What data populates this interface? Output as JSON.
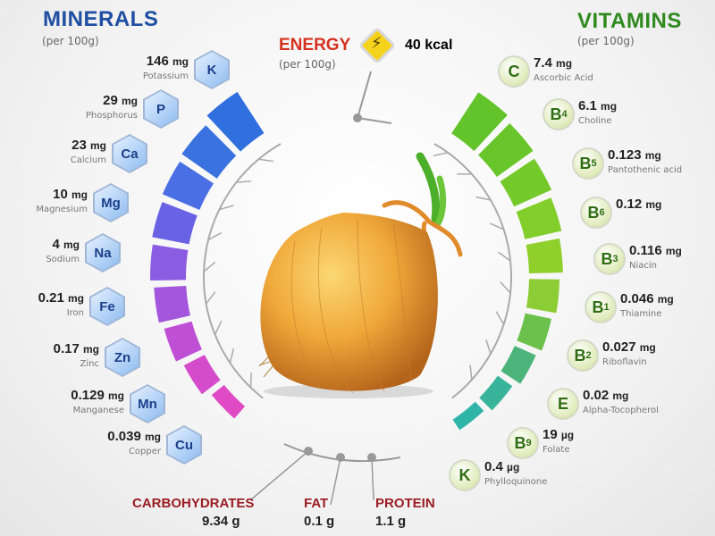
{
  "minerals": {
    "title": "MINERALS",
    "per": "(per 100g)",
    "items": [
      {
        "symbol": "K",
        "value": "146",
        "unit": "mg",
        "name": "Potassium"
      },
      {
        "symbol": "P",
        "value": "29",
        "unit": "mg",
        "name": "Phosphorus"
      },
      {
        "symbol": "Ca",
        "value": "23",
        "unit": "mg",
        "name": "Calcium"
      },
      {
        "symbol": "Mg",
        "value": "10",
        "unit": "mg",
        "name": "Magnesium"
      },
      {
        "symbol": "Na",
        "value": "4",
        "unit": "mg",
        "name": "Sodium"
      },
      {
        "symbol": "Fe",
        "value": "0.21",
        "unit": "mg",
        "name": "Iron"
      },
      {
        "symbol": "Zn",
        "value": "0.17",
        "unit": "mg",
        "name": "Zinc"
      },
      {
        "symbol": "Mn",
        "value": "0.129",
        "unit": "mg",
        "name": "Manganese"
      },
      {
        "symbol": "Cu",
        "value": "0.039",
        "unit": "mg",
        "name": "Copper"
      }
    ]
  },
  "vitamins": {
    "title": "VITAMINS",
    "per": "(per 100g)",
    "items": [
      {
        "symbol": "C",
        "sub": "",
        "value": "7.4",
        "unit": "mg",
        "name": "Ascorbic Acid"
      },
      {
        "symbol": "B",
        "sub": "4",
        "value": "6.1",
        "unit": "mg",
        "name": "Choline"
      },
      {
        "symbol": "B",
        "sub": "5",
        "value": "0.123",
        "unit": "mg",
        "name": "Pantothenic acid"
      },
      {
        "symbol": "B",
        "sub": "6",
        "value": "0.12",
        "unit": "mg",
        "name": ""
      },
      {
        "symbol": "B",
        "sub": "3",
        "value": "0.116",
        "unit": "mg",
        "name": "Niacin"
      },
      {
        "symbol": "B",
        "sub": "1",
        "value": "0.046",
        "unit": "mg",
        "name": "Thiamine"
      },
      {
        "symbol": "B",
        "sub": "2",
        "value": "0.027",
        "unit": "mg",
        "name": "Riboflavin"
      },
      {
        "symbol": "E",
        "sub": "",
        "value": "0.02",
        "unit": "mg",
        "name": "Alpha-Tocopherol"
      },
      {
        "symbol": "B",
        "sub": "9",
        "value": "19",
        "unit": "µg",
        "name": "Folate"
      },
      {
        "symbol": "K",
        "sub": "",
        "value": "0.4",
        "unit": "µg",
        "name": "Phylloquinone"
      }
    ]
  },
  "energy": {
    "title": "ENERGY",
    "per": "(per 100g)",
    "value": "40 kcal",
    "icon": "lightning-bolt-icon"
  },
  "macros": [
    {
      "label": "CARBOHYDRATES",
      "value": "9.34 g"
    },
    {
      "label": "FAT",
      "value": "0.1 g"
    },
    {
      "label": "PROTEIN",
      "value": "1.1 g"
    }
  ],
  "colors": {
    "minerals_title": "#1f4ea3",
    "vitamins_title": "#2f8a1e",
    "energy_title": "#d6311f",
    "macro_label": "#9b1c22"
  }
}
